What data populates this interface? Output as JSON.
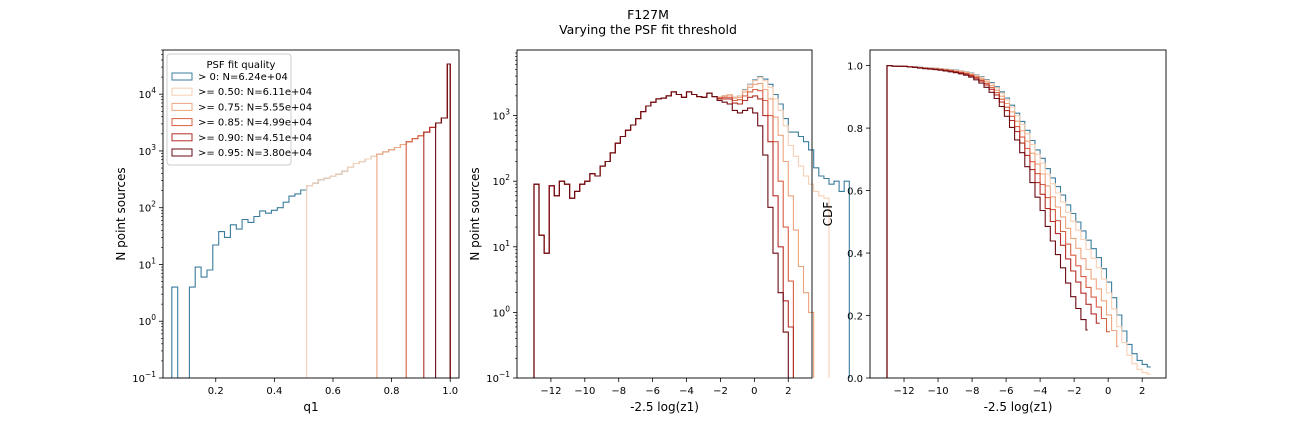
{
  "figure": {
    "title_line1": "F127M",
    "title_line2": "Varying the PSF fit threshold"
  },
  "legend": {
    "title": "PSF fit quality",
    "placement": "upper-left of first panel",
    "entries": [
      {
        "label": "> 0: N=6.24e+04",
        "color": "#3a7c9e"
      },
      {
        "label": ">= 0.50: N=6.11e+04",
        "color": "#f7cfb4"
      },
      {
        "label": ">= 0.75: N=5.55e+04",
        "color": "#eda57f"
      },
      {
        "label": ">= 0.85: N=4.99e+04",
        "color": "#d95f44"
      },
      {
        "label": ">= 0.90: N=4.51e+04",
        "color": "#b52d26"
      },
      {
        "label": ">= 0.95: N=3.80e+04",
        "color": "#6b0a13"
      }
    ]
  },
  "chart_data": [
    {
      "type": "step-histogram",
      "xlabel": "q1",
      "ylabel": "N point sources",
      "yscale": "log",
      "xlim": [
        0.02,
        1.03
      ],
      "ylim": [
        0.1,
        60000
      ],
      "xticks": [
        0.2,
        0.4,
        0.6,
        0.8,
        1.0
      ],
      "xtick_labels": [
        "0.2",
        "0.4",
        "0.6",
        "0.8",
        "1.0"
      ],
      "yticks_exp": [
        -1,
        0,
        1,
        2,
        3,
        4
      ],
      "grid": false,
      "bins": {
        "edges": [
          0.05,
          0.07,
          0.09,
          0.11,
          0.13,
          0.15,
          0.17,
          0.19,
          0.21,
          0.23,
          0.25,
          0.27,
          0.29,
          0.31,
          0.33,
          0.35,
          0.37,
          0.39,
          0.41,
          0.43,
          0.45,
          0.47,
          0.49,
          0.51,
          0.53,
          0.55,
          0.57,
          0.59,
          0.61,
          0.63,
          0.65,
          0.67,
          0.69,
          0.71,
          0.73,
          0.75,
          0.77,
          0.79,
          0.81,
          0.83,
          0.85,
          0.87,
          0.89,
          0.91,
          0.93,
          0.95,
          0.97,
          0.99,
          1.0
        ],
        "counts": [
          4,
          0,
          0,
          4,
          9,
          6,
          8,
          22,
          38,
          30,
          50,
          42,
          62,
          55,
          70,
          88,
          80,
          90,
          100,
          125,
          160,
          175,
          205,
          245,
          270,
          310,
          330,
          360,
          390,
          440,
          520,
          600,
          650,
          720,
          800,
          880,
          960,
          1050,
          1150,
          1300,
          1450,
          1650,
          1850,
          2150,
          2600,
          3100,
          3800,
          34000
        ]
      },
      "series_start_q": [
        0.05,
        0.5,
        0.74,
        0.84,
        0.9,
        0.95
      ]
    },
    {
      "type": "step-histogram",
      "xlabel": "-2.5 log(z1)",
      "ylabel": "N point sources",
      "yscale": "log",
      "xlim": [
        -14,
        3.4
      ],
      "ylim": [
        0.1,
        10000
      ],
      "xticks": [
        -12,
        -10,
        -8,
        -6,
        -4,
        -2,
        0,
        2
      ],
      "xtick_labels": [
        "−12",
        "−10",
        "−8",
        "−6",
        "−4",
        "−2",
        "0",
        "2"
      ],
      "yticks_exp": [
        -1,
        0,
        1,
        2,
        3
      ],
      "grid": false,
      "bin_start": -13.0,
      "bin_width": 0.3,
      "series": [
        {
          "name": "> 0: N=6.24e+04",
          "counts": [
            90,
            15,
            8,
            85,
            60,
            100,
            90,
            55,
            70,
            90,
            100,
            130,
            120,
            170,
            200,
            270,
            380,
            480,
            600,
            720,
            900,
            1150,
            1400,
            1600,
            1800,
            1850,
            2000,
            2300,
            2100,
            1900,
            2300,
            2100,
            1950,
            1900,
            2200,
            1950,
            1900,
            2000,
            2100,
            1900,
            2000,
            2500,
            3000,
            3500,
            3900,
            3600,
            3000,
            2100,
            1500,
            900,
            560,
            560,
            480,
            400,
            300,
            160,
            120,
            110,
            90,
            100,
            70,
            100
          ]
        },
        {
          "name": ">= 0.50: N=6.11e+04",
          "counts": [
            90,
            15,
            8,
            85,
            60,
            100,
            90,
            55,
            70,
            90,
            100,
            130,
            120,
            170,
            200,
            270,
            380,
            480,
            600,
            720,
            900,
            1150,
            1400,
            1600,
            1800,
            1850,
            2000,
            2300,
            2100,
            1900,
            2300,
            2100,
            1950,
            1900,
            2200,
            1950,
            1900,
            2000,
            2100,
            1900,
            2000,
            2450,
            2950,
            3400,
            3800,
            3400,
            2700,
            1800,
            1200,
            700,
            350,
            240,
            170,
            120,
            90,
            70,
            60,
            55
          ]
        },
        {
          "name": ">= 0.75: N=5.55e+04",
          "counts": [
            90,
            15,
            8,
            85,
            60,
            100,
            90,
            55,
            70,
            90,
            100,
            130,
            120,
            170,
            200,
            270,
            380,
            480,
            600,
            720,
            900,
            1150,
            1400,
            1600,
            1800,
            1850,
            2000,
            2300,
            2100,
            1900,
            2300,
            2100,
            1950,
            1900,
            2200,
            1950,
            1900,
            2000,
            2050,
            1850,
            1900,
            2300,
            2700,
            3000,
            3100,
            2500,
            1800,
            950,
            500,
            200,
            60,
            18,
            5,
            2,
            1
          ]
        },
        {
          "name": ">= 0.85: N=4.99e+04",
          "counts": [
            90,
            15,
            8,
            85,
            60,
            100,
            90,
            55,
            70,
            90,
            100,
            130,
            120,
            170,
            200,
            270,
            380,
            480,
            600,
            720,
            900,
            1150,
            1400,
            1600,
            1800,
            1850,
            2000,
            2300,
            2100,
            1900,
            2300,
            2100,
            1950,
            1900,
            2200,
            1950,
            1850,
            1900,
            1900,
            1700,
            1750,
            2000,
            2300,
            2500,
            2400,
            1700,
            1000,
            400,
            100,
            20,
            3
          ]
        },
        {
          "name": ">= 0.90: N=4.51e+04",
          "counts": [
            90,
            15,
            8,
            85,
            60,
            100,
            90,
            55,
            70,
            90,
            100,
            130,
            120,
            170,
            200,
            270,
            380,
            480,
            600,
            720,
            900,
            1150,
            1400,
            1600,
            1800,
            1850,
            2000,
            2300,
            2100,
            1900,
            2300,
            2100,
            1950,
            1900,
            2200,
            1950,
            1800,
            1800,
            1800,
            1550,
            1500,
            1700,
            1900,
            2000,
            1800,
            1000,
            400,
            60,
            10,
            1.5,
            0.6
          ]
        },
        {
          "name": ">= 0.95: N=3.80e+04",
          "counts": [
            90,
            15,
            8,
            85,
            60,
            100,
            90,
            55,
            70,
            90,
            100,
            130,
            120,
            170,
            200,
            270,
            380,
            480,
            600,
            720,
            900,
            1150,
            1400,
            1600,
            1800,
            1850,
            2000,
            2300,
            2100,
            1900,
            2300,
            2100,
            1950,
            1900,
            2200,
            1950,
            1700,
            1600,
            1500,
            1200,
            1100,
            1200,
            1300,
            1100,
            700,
            250,
            40,
            8,
            2,
            0.5
          ]
        }
      ]
    },
    {
      "type": "step-cdf",
      "xlabel": "-2.5 log(z1)",
      "ylabel": "CDF",
      "xlim": [
        -14,
        3.4
      ],
      "ylim": [
        0.0,
        1.05
      ],
      "xticks": [
        -12,
        -10,
        -8,
        -6,
        -4,
        -2,
        0,
        2
      ],
      "xtick_labels": [
        "−12",
        "−10",
        "−8",
        "−6",
        "−4",
        "−2",
        "0",
        "2"
      ],
      "yticks": [
        0.0,
        0.2,
        0.4,
        0.6,
        0.8,
        1.0
      ],
      "ytick_labels": [
        "0.0",
        "0.2",
        "0.4",
        "0.6",
        "0.8",
        "1.0"
      ],
      "grid": false,
      "bin_start": -13.0,
      "bin_width": 0.3,
      "series_end_x": [
        2.5,
        2.5,
        0.6,
        0.1,
        -0.5,
        -1.2
      ]
    }
  ]
}
